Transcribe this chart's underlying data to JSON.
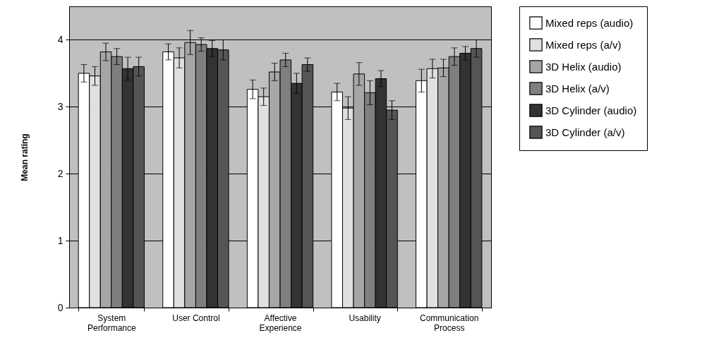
{
  "chart_data": {
    "type": "bar",
    "ylabel": "Mean rating",
    "categories": [
      "System\nPerformance",
      "User Control",
      "Affective\nExperience",
      "Usability",
      "Communication\nProcess"
    ],
    "series": [
      {
        "name": "Mixed reps (audio)",
        "color": "#ffffff",
        "values": [
          3.5,
          3.82,
          3.26,
          3.22,
          3.39
        ],
        "errors": [
          0.13,
          0.12,
          0.14,
          0.13,
          0.17
        ]
      },
      {
        "name": "Mixed reps (a/v)",
        "color": "#e0e0e0",
        "values": [
          3.46,
          3.73,
          3.15,
          2.98,
          3.57
        ],
        "errors": [
          0.14,
          0.15,
          0.13,
          0.17,
          0.14
        ]
      },
      {
        "name": "3D Helix (audio)",
        "color": "#a6a6a6",
        "values": [
          3.82,
          3.96,
          3.52,
          3.49,
          3.58
        ],
        "errors": [
          0.13,
          0.18,
          0.13,
          0.17,
          0.13
        ]
      },
      {
        "name": "3D Helix (a/v)",
        "color": "#7f7f7f",
        "values": [
          3.75,
          3.93,
          3.7,
          3.21,
          3.75
        ],
        "errors": [
          0.12,
          0.1,
          0.1,
          0.18,
          0.13
        ]
      },
      {
        "name": "3D Cylinder (audio)",
        "color": "#333333",
        "values": [
          3.57,
          3.87,
          3.35,
          3.42,
          3.8
        ],
        "errors": [
          0.17,
          0.12,
          0.15,
          0.12,
          0.1
        ]
      },
      {
        "name": "3D Cylinder (a/v)",
        "color": "#555555",
        "values": [
          3.6,
          3.85,
          3.63,
          2.95,
          3.87
        ],
        "errors": [
          0.14,
          0.15,
          0.1,
          0.14,
          0.13
        ]
      }
    ],
    "ylim": [
      0,
      4.5
    ],
    "yticks": [
      0,
      1,
      2,
      3,
      4
    ],
    "grid": "y",
    "legend": "right"
  }
}
